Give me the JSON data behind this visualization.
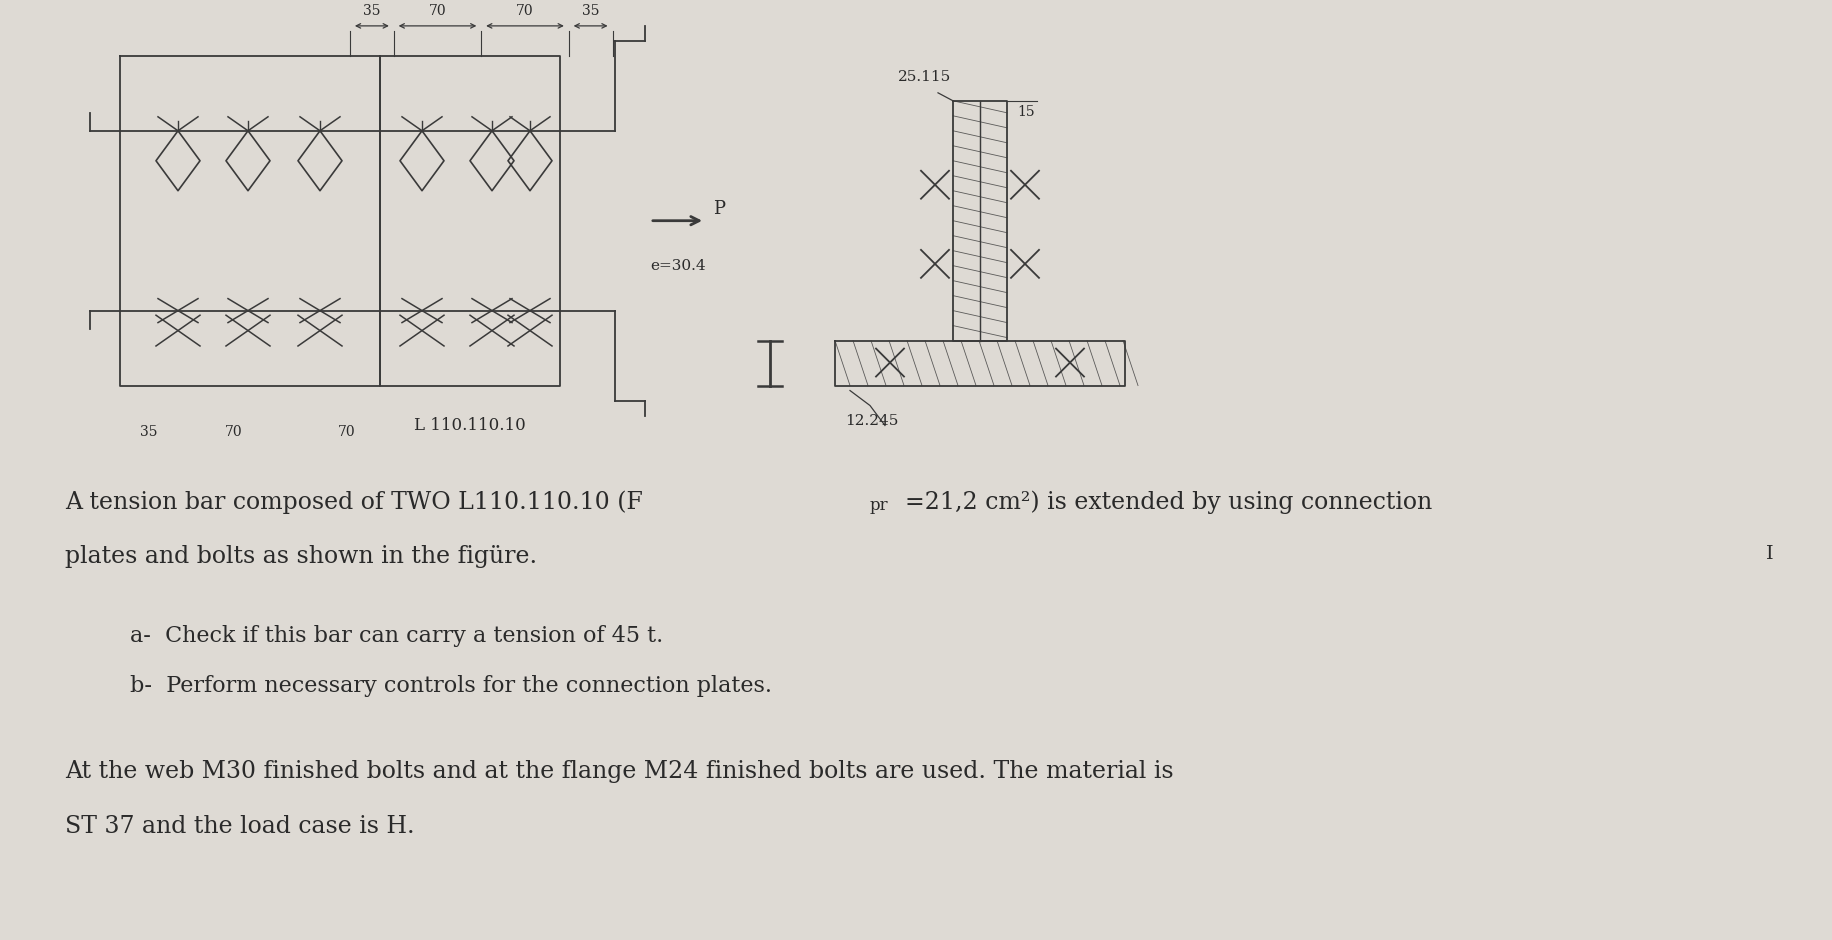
{
  "bg_color": "#dedad4",
  "line_color": "#3a3a3a",
  "text_color": "#2a2a2a",
  "label_L": "L 110.110.10",
  "label_e": "e=30.4",
  "label_P": "P",
  "label_25115": "25.115",
  "label_15": "15",
  "label_12245": "12.245",
  "dim_top": [
    "35",
    "70",
    "70",
    "35"
  ],
  "dim_bot": [
    "35",
    "70",
    "70"
  ],
  "text_line1a": "A tension bar composed of TWO L110.110.10 (F",
  "text_sub": "pr",
  "text_line1b": "=21,2 cm²) is extended by using connection",
  "text_line2": "plates and bolts as shown in the figüre.",
  "text_cursor": "I",
  "item_a": "a-  Check if this bar can carry a tension of 45 t.",
  "item_b": "b-  Perform necessary controls for the connection plates.",
  "footer1": "At the web M30 finished bolts and at the flange M24 finished bolts are used. The material is",
  "footer2": "ST 37 and the load case is H."
}
